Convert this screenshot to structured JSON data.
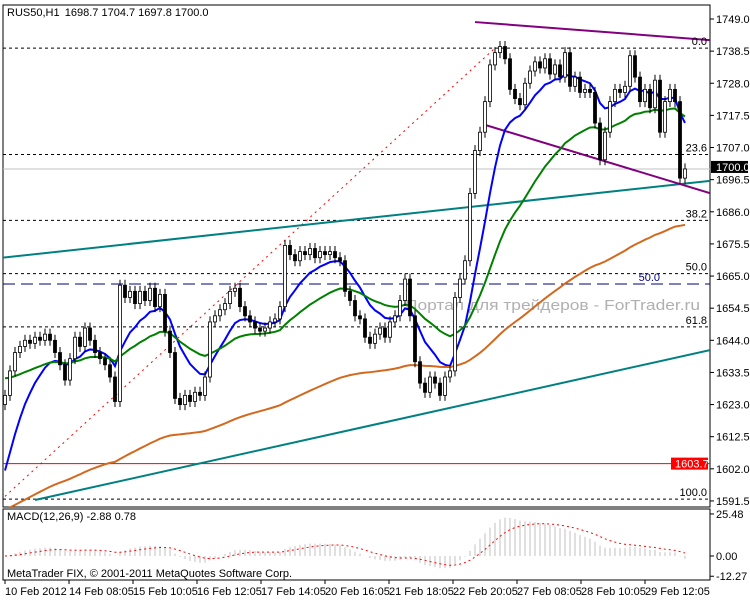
{
  "header": {
    "symbol": "RUS50,H1",
    "ohlc": "1698.7 1704.7 1697.8 1700.0"
  },
  "footer": {
    "copyright": "MetaTrader FIX, © 2001-2011 MetaQuotes Software Corp."
  },
  "watermark": "Портал для трейдеров - ForTrader.ru",
  "colors": {
    "bull": "#ffffff",
    "bear": "#000000",
    "ma_fast": "#0000ff",
    "ma_mid": "#008000",
    "ma_slow": "#d2691e",
    "trend_teal": "#008080",
    "trend_purple": "#800080",
    "fib": "#ff0000",
    "macd_hist": "#c0c0c0",
    "macd_signal": "#ff0000",
    "marked_price": "#ff0000"
  },
  "chart_data": {
    "type": "candlestick",
    "symbol": "RUS50",
    "timeframe": "H1",
    "closes": [
      1626,
      1634,
      1640,
      1642,
      1644,
      1643,
      1645,
      1644,
      1646,
      1644,
      1640,
      1636,
      1631,
      1638,
      1645,
      1642,
      1648,
      1644,
      1640,
      1638,
      1636,
      1632,
      1624,
      1662,
      1658,
      1660,
      1656,
      1660,
      1657,
      1661,
      1655,
      1659,
      1647,
      1640,
      1625,
      1623,
      1626,
      1624,
      1627,
      1626,
      1632,
      1650,
      1652,
      1654,
      1656,
      1660,
      1661,
      1655,
      1652,
      1650,
      1648,
      1647,
      1648,
      1650,
      1651,
      1655,
      1675,
      1672,
      1670,
      1673,
      1672,
      1674,
      1671,
      1673,
      1672,
      1673,
      1671,
      1670,
      1660,
      1657,
      1652,
      1651,
      1645,
      1643,
      1646,
      1648,
      1645,
      1650,
      1652,
      1657,
      1664,
      1652,
      1637,
      1630,
      1627,
      1632,
      1630,
      1626,
      1632,
      1634,
      1658,
      1664,
      1670,
      1692,
      1706,
      1712,
      1722,
      1734,
      1738,
      1740,
      1736,
      1726,
      1723,
      1721,
      1728,
      1732,
      1735,
      1733,
      1736,
      1731,
      1734,
      1730,
      1738,
      1727,
      1730,
      1725,
      1726,
      1725,
      1715,
      1703,
      1712,
      1722,
      1726,
      1725,
      1727,
      1737,
      1730,
      1722,
      1726,
      1720,
      1729,
      1712,
      1722,
      1726,
      1722,
      1697,
      1700
    ],
    "y_axis": {
      "range": [
        1591.5,
        1749.0
      ],
      "ticks": [
        "1749.0",
        "1738.5",
        "1728.0",
        "1717.5",
        "1707.0",
        "1696.5",
        "1686.0",
        "1675.5",
        "1665.0",
        "1654.5",
        "1644.0",
        "1633.5",
        "1623.0",
        "1612.5",
        "1602.0",
        "1591.5"
      ]
    },
    "x_axis": {
      "tick_labels": [
        "10 Feb 2012",
        "14 Feb 08:05",
        "15 Feb 10:05",
        "16 Feb 12:05",
        "17 Feb 14:05",
        "20 Feb 16:05",
        "21 Feb 18:05",
        "22 Feb 20:05",
        "27 Feb 08:05",
        "28 Feb 10:05",
        "29 Feb 12:05"
      ]
    },
    "current_price": {
      "label": "1700.0",
      "value": 1700.0
    },
    "marked_price": {
      "label": "1603.7",
      "value": 1603.7
    },
    "fibonacci": {
      "from": {
        "bar": 0,
        "price": 1593.0
      },
      "to": {
        "bar": 98,
        "price": 1739.5
      },
      "levels": [
        {
          "label": "0.0",
          "price": 1739.5
        },
        {
          "label": "23.6",
          "price": 1704.7
        },
        {
          "label": "38.2",
          "price": 1683.2
        },
        {
          "label": "50.0",
          "price": 1665.8
        },
        {
          "label": "61.8",
          "price": 1648.4
        },
        {
          "label": "100.0",
          "price": 1592.1
        }
      ]
    },
    "extra_level": {
      "label": "50.0",
      "price": 1662.4
    },
    "trendlines": [
      {
        "color": "#008080",
        "from": {
          "bar": -1,
          "price": 1670.9
        },
        "to": {
          "bar": 141,
          "price": 1696.1
        }
      },
      {
        "color": "#008080",
        "from": {
          "bar": 6,
          "price": 1591.8
        },
        "to": {
          "bar": 141,
          "price": 1640.8
        }
      },
      {
        "color": "#800080",
        "from": {
          "bar": 94,
          "price": 1748.0
        },
        "to": {
          "bar": 141,
          "price": 1742.1
        }
      },
      {
        "color": "#800080",
        "from": {
          "bar": 96,
          "price": 1714.4
        },
        "to": {
          "bar": 141,
          "price": 1692.1
        }
      }
    ],
    "macd": {
      "label": "MACD(12,26,9) -2.88 0.78",
      "fast": 12,
      "slow": 26,
      "signal": 9,
      "ticks": [
        "25.48",
        "0.00",
        "-12.27"
      ],
      "range": [
        -12.27,
        25.48
      ]
    }
  }
}
